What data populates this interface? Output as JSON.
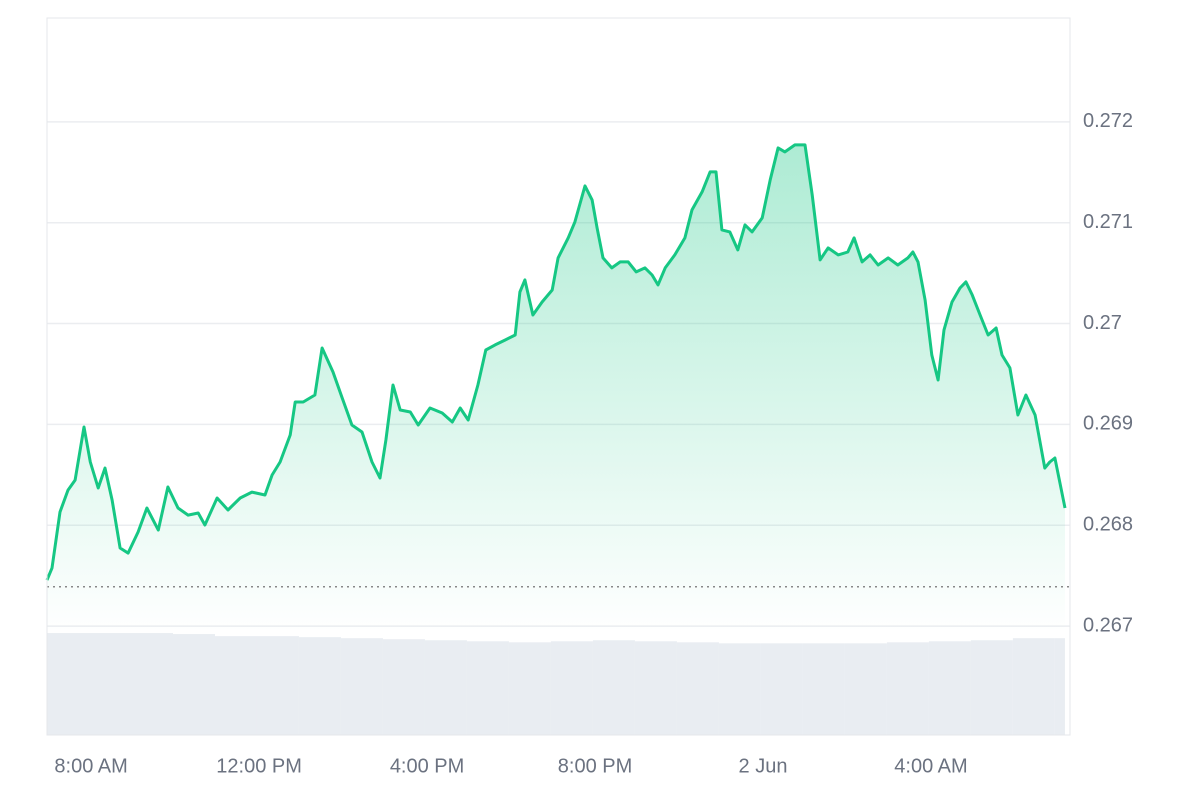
{
  "chart_data": {
    "type": "area",
    "x": [
      6.95,
      7.07,
      7.26,
      7.45,
      7.62,
      7.83,
      7.98,
      8.17,
      8.33,
      8.5,
      8.69,
      8.88,
      9.12,
      9.33,
      9.6,
      9.83,
      10.07,
      10.31,
      10.55,
      10.71,
      11,
      11.26,
      11.55,
      11.83,
      12.14,
      12.31,
      12.5,
      12.74,
      12.86,
      13.05,
      13.33,
      13.5,
      13.76,
      13.98,
      14.21,
      14.45,
      14.69,
      14.88,
      15.02,
      15.19,
      15.36,
      15.6,
      15.79,
      16.07,
      16.36,
      16.6,
      16.79,
      16.98,
      17.21,
      17.4,
      17.62,
      17.86,
      18.1,
      18.21,
      18.33,
      18.52,
      18.74,
      18.98,
      19.12,
      19.36,
      19.52,
      19.76,
      19.93,
      20.05,
      20.19,
      20.4,
      20.6,
      20.79,
      20.98,
      21.19,
      21.36,
      21.5,
      21.67,
      21.9,
      22.14,
      22.31,
      22.55,
      22.74,
      22.88,
      23.02,
      23.21,
      23.4,
      23.57,
      23.74,
      23.98,
      24.17,
      24.36,
      24.52,
      24.76,
      25,
      25.17,
      25.36,
      25.55,
      25.79,
      26.02,
      26.17,
      26.36,
      26.55,
      26.74,
      26.98,
      27.21,
      27.45,
      27.57,
      27.69,
      27.86,
      28.02,
      28.17,
      28.31,
      28.5,
      28.69,
      28.83,
      28.98,
      29.17,
      29.36,
      29.55,
      29.69,
      29.88,
      30.07,
      30.26,
      30.48,
      30.71,
      30.83,
      30.95,
      31.19
    ],
    "values": [
      0.267456,
      0.267575,
      0.268131,
      0.268349,
      0.268448,
      0.268974,
      0.268627,
      0.268369,
      0.268567,
      0.26825,
      0.267774,
      0.267724,
      0.267933,
      0.268171,
      0.267952,
      0.268379,
      0.268171,
      0.268101,
      0.268121,
      0.268002,
      0.26827,
      0.268151,
      0.26827,
      0.268329,
      0.2683,
      0.268498,
      0.268627,
      0.268895,
      0.269222,
      0.269222,
      0.269292,
      0.269758,
      0.26952,
      0.269262,
      0.268994,
      0.268925,
      0.268627,
      0.268468,
      0.268845,
      0.269391,
      0.269143,
      0.269123,
      0.268994,
      0.269163,
      0.269113,
      0.269024,
      0.269163,
      0.269044,
      0.269391,
      0.269738,
      0.269788,
      0.269837,
      0.269887,
      0.270313,
      0.270433,
      0.270085,
      0.270214,
      0.270333,
      0.270651,
      0.270849,
      0.271008,
      0.271365,
      0.271226,
      0.270948,
      0.270651,
      0.270552,
      0.270611,
      0.270611,
      0.270512,
      0.270552,
      0.270482,
      0.270383,
      0.270552,
      0.270681,
      0.270849,
      0.271127,
      0.271306,
      0.271504,
      0.271504,
      0.270929,
      0.270909,
      0.27073,
      0.270978,
      0.270909,
      0.271048,
      0.271425,
      0.271742,
      0.271702,
      0.271772,
      0.271772,
      0.271276,
      0.270631,
      0.27075,
      0.270681,
      0.27071,
      0.270849,
      0.270611,
      0.270681,
      0.270581,
      0.270651,
      0.270581,
      0.270651,
      0.27071,
      0.270611,
      0.270234,
      0.269688,
      0.26944,
      0.269937,
      0.270214,
      0.270353,
      0.270413,
      0.270284,
      0.270085,
      0.269887,
      0.269956,
      0.269688,
      0.26956,
      0.269093,
      0.269292,
      0.269093,
      0.268567,
      0.268627,
      0.268667,
      0.268171
    ],
    "color": "#16c784",
    "xlim": [
      6.95,
      31.31
    ],
    "ylim": [
      0.26592,
      0.27303
    ],
    "yticks": [
      0.267,
      0.268,
      0.269,
      0.27,
      0.271,
      0.272
    ],
    "xticks": [
      {
        "value": 8,
        "label": "8:00 AM"
      },
      {
        "value": 12,
        "label": "12:00 PM"
      },
      {
        "value": 16,
        "label": "4:00 PM"
      },
      {
        "value": 20,
        "label": "8:00 PM"
      },
      {
        "value": 24,
        "label": "2 Jun"
      },
      {
        "value": 28,
        "label": "4:00 AM"
      }
    ],
    "grid": true,
    "baseline": 0.26739,
    "volume": {
      "bins": [
        6.95,
        7.95,
        8.95,
        9.95,
        10.95,
        11.95,
        12.95,
        13.95,
        14.95,
        15.95,
        16.95,
        17.95,
        18.95,
        19.95,
        20.95,
        21.95,
        22.95,
        23.95,
        24.95,
        25.95,
        26.95,
        27.95,
        28.95,
        29.95,
        30.95,
        31.19
      ],
      "values": [
        99,
        99,
        99,
        98,
        96,
        96,
        95,
        94,
        93,
        92,
        91,
        90,
        91,
        92,
        91,
        90,
        89,
        89,
        89,
        89,
        90,
        91,
        92,
        94,
        94
      ],
      "lim": [
        0,
        100
      ],
      "color": "#e9edf2"
    }
  }
}
